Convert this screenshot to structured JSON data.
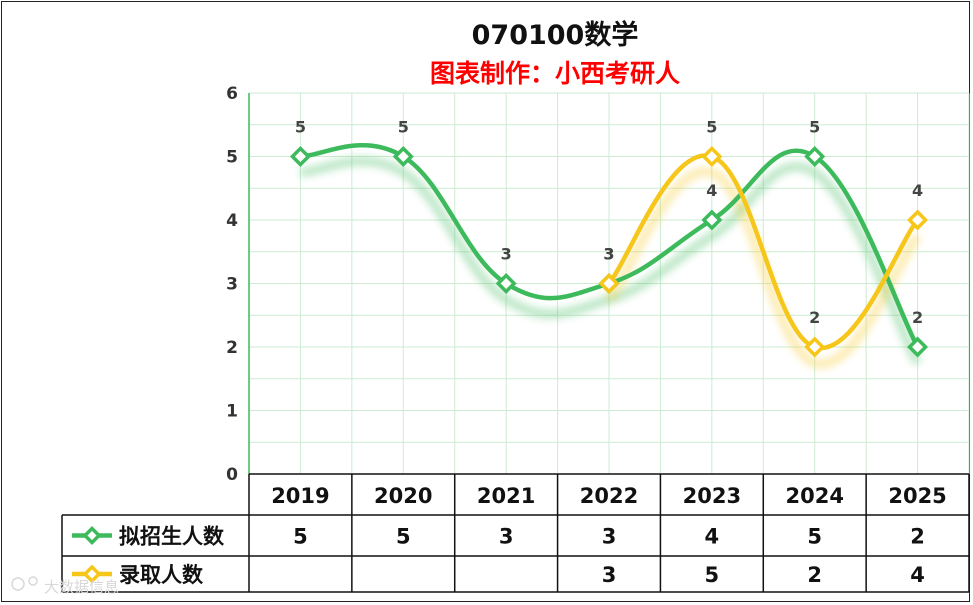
{
  "chart_data": {
    "type": "line",
    "title": "070100数学",
    "subtitle": "图表制作：小西考研人",
    "categories": [
      "2019",
      "2020",
      "2021",
      "2022",
      "2023",
      "2024",
      "2025"
    ],
    "ylim": [
      0,
      6
    ],
    "yticks": [
      "0",
      "1",
      "2",
      "3",
      "4",
      "5",
      "6"
    ],
    "grid": true,
    "legend": "data-table-left",
    "series": [
      {
        "name": "拟招生人数",
        "color": "#3dba5c",
        "values": [
          5,
          5,
          3,
          3,
          4,
          5,
          2
        ],
        "labels": [
          "5",
          "5",
          "3",
          "3",
          "4",
          "5",
          "2"
        ]
      },
      {
        "name": "录取人数",
        "color": "#f7c61a",
        "values": [
          null,
          null,
          null,
          3,
          5,
          2,
          4
        ],
        "labels": [
          "",
          "",
          "",
          "3",
          "5",
          "2",
          "4"
        ]
      }
    ]
  },
  "watermark": "大数据信息"
}
